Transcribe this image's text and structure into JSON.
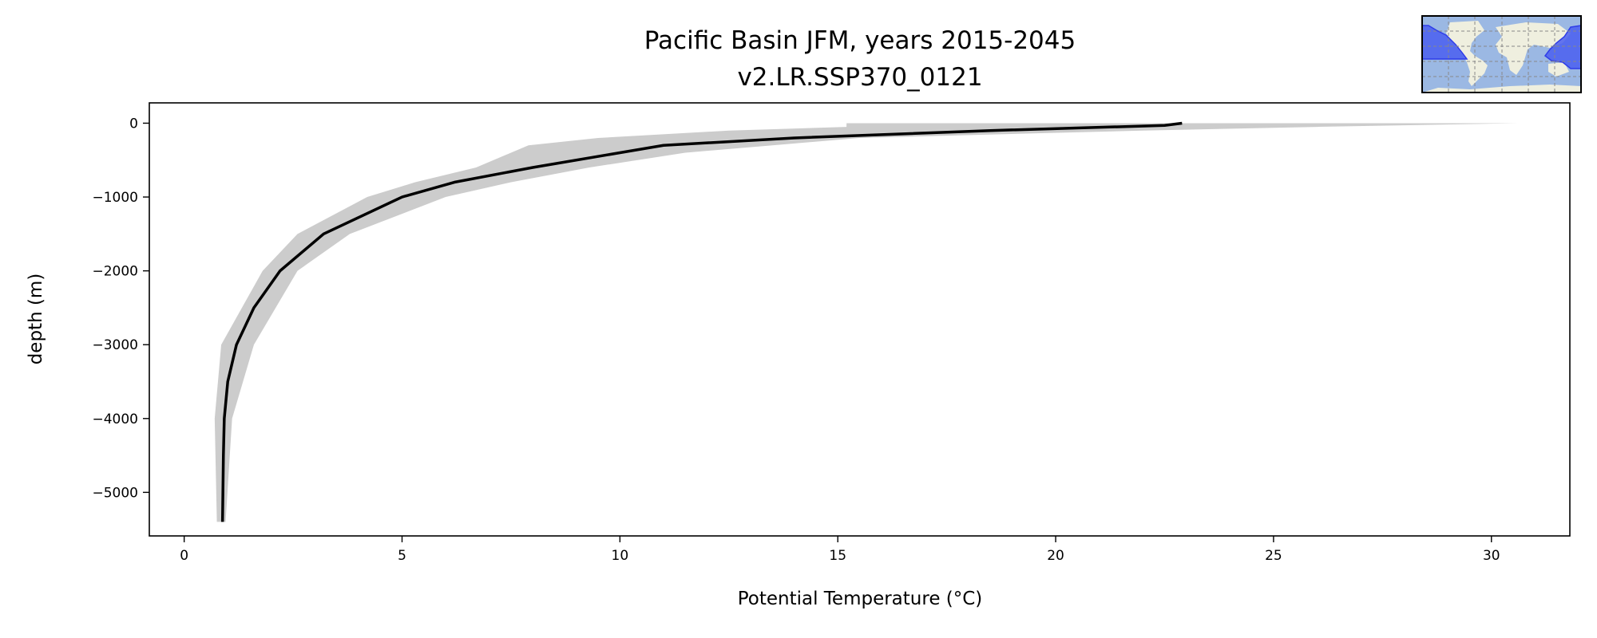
{
  "chart_data": {
    "type": "line",
    "title": "Pacific Basin JFM, years 2015-2045",
    "subtitle": "v2.LR.SSP370_0121",
    "xlabel": "Potential Temperature (°C)",
    "ylabel": "depth (m)",
    "xlim": [
      -0.8,
      31.8
    ],
    "ylim": [
      -5590,
      275
    ],
    "xticks": [
      0,
      5,
      10,
      15,
      20,
      25,
      30
    ],
    "xtick_labels": [
      "0",
      "5",
      "10",
      "15",
      "20",
      "25",
      "30"
    ],
    "yticks": [
      0,
      -1000,
      -2000,
      -3000,
      -4000,
      -5000
    ],
    "ytick_labels": [
      "0",
      "−1000",
      "−2000",
      "−3000",
      "−4000",
      "−5000"
    ],
    "grid": false,
    "colors": {
      "mean_line": "#000000",
      "range_band": "#cccccc"
    },
    "series": [
      {
        "role": "mean",
        "depth": [
          -5400,
          -4500,
          -4000,
          -3500,
          -3000,
          -2500,
          -2000,
          -1500,
          -1000,
          -800,
          -600,
          -400,
          -300,
          -200,
          -100,
          -30,
          0
        ],
        "temperature": [
          0.88,
          0.9,
          0.92,
          1.0,
          1.2,
          1.6,
          2.2,
          3.2,
          5.0,
          6.2,
          8.0,
          10.0,
          11.0,
          14.0,
          18.5,
          22.5,
          22.9
        ]
      }
    ],
    "band": {
      "depth": [
        -5400,
        -4000,
        -3000,
        -2000,
        -1500,
        -1000,
        -800,
        -600,
        -400,
        -300,
        -200,
        -100,
        -50,
        0
      ],
      "min": [
        0.75,
        0.7,
        0.85,
        1.8,
        2.6,
        4.2,
        5.3,
        6.7,
        7.5,
        7.9,
        9.5,
        12.5,
        15.2,
        15.2
      ],
      "max": [
        0.95,
        1.1,
        1.6,
        2.6,
        3.8,
        6.0,
        7.5,
        9.3,
        11.5,
        13.5,
        15.5,
        22.0,
        26.0,
        30.6
      ]
    },
    "inset": {
      "type": "world-map",
      "highlighted_region": "Pacific Basin",
      "highlight_color": "#4a5ef0",
      "ocean_color": "#9bb8e3",
      "land_color": "#efefdf"
    }
  }
}
